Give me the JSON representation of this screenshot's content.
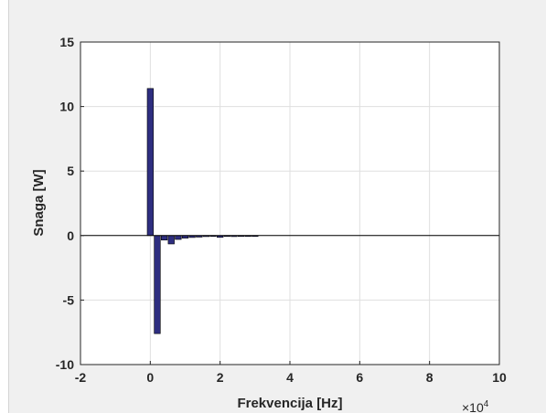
{
  "chart_data": {
    "type": "bar",
    "title": "",
    "xlabel": "Frekvencija [Hz]",
    "ylabel": "Snaga [W]",
    "x_exponent_label": "×10",
    "x_exponent_power": "4",
    "xlim": [
      -20000,
      100000
    ],
    "ylim": [
      -10,
      15
    ],
    "xticks": [
      -20000,
      0,
      20000,
      40000,
      60000,
      80000,
      100000
    ],
    "xtick_labels": [
      "-2",
      "0",
      "2",
      "4",
      "6",
      "8",
      "10"
    ],
    "yticks": [
      -10,
      -5,
      0,
      5,
      10,
      15
    ],
    "ytick_labels": [
      "-10",
      "-5",
      "0",
      "5",
      "10",
      "15"
    ],
    "grid": true,
    "bar_width": 2000,
    "bar_color": "#2e2e80",
    "x": [
      0,
      2000,
      4000,
      6000,
      8000,
      10000,
      12000,
      14000,
      16000,
      18000,
      20000,
      22000,
      24000,
      26000,
      28000,
      30000
    ],
    "values": [
      11.4,
      -7.6,
      -0.35,
      -0.65,
      -0.3,
      -0.2,
      -0.15,
      -0.12,
      -0.08,
      -0.06,
      -0.14,
      -0.04,
      -0.08,
      -0.03,
      -0.03,
      -0.02
    ]
  }
}
